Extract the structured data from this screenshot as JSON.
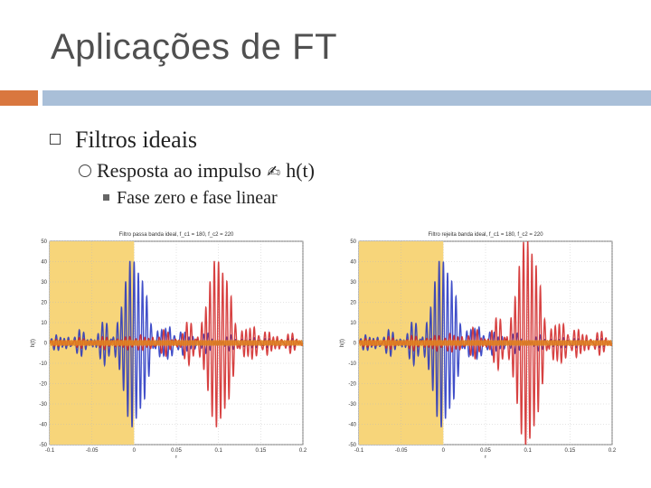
{
  "slide": {
    "title": "Aplicações de FT",
    "bullet_1": "Filtros ideais",
    "bullet_2_prefix": "Resposta ao impulso",
    "bullet_2_arrow": "✍",
    "bullet_2_suffix": "h(t)",
    "bullet_3": "Fase zero e fase linear"
  },
  "chart_data": [
    {
      "type": "line",
      "title": "Filtro passa banda ideal, f_c1 = 180, f_c2 = 220",
      "xlabel": "t",
      "ylabel": "h(t)",
      "xlim": [
        -0.1,
        0.2
      ],
      "ylim": [
        -50,
        50
      ],
      "xticks": [
        "-0.1",
        "-0.05",
        "0",
        "0.05",
        "0.1",
        "0.15",
        "0.2"
      ],
      "yticks": [
        "50",
        "40",
        "30",
        "20",
        "10",
        "0",
        "-10",
        "-20",
        "-30",
        "-40",
        "-50"
      ],
      "shaded_region": [
        -0.1,
        0
      ],
      "series": [
        {
          "color": "#2030c0",
          "center": 0,
          "amplitude": 40
        },
        {
          "color": "#d02020",
          "center": 0.1,
          "amplitude": 40
        },
        {
          "color": "#e08020",
          "center": null,
          "amplitude": 1
        }
      ]
    },
    {
      "type": "line",
      "title": "Filtro rejeita banda ideal, f_c1 = 180, f_c2 = 220",
      "xlabel": "t",
      "ylabel": "h(t)",
      "xlim": [
        -0.1,
        0.2
      ],
      "ylim": [
        -50,
        50
      ],
      "xticks": [
        "-0.1",
        "-0.05",
        "0",
        "0.05",
        "0.1",
        "0.15",
        "0.2"
      ],
      "yticks": [
        "50",
        "40",
        "30",
        "20",
        "10",
        "0",
        "-10",
        "-20",
        "-30",
        "-40",
        "-50"
      ],
      "shaded_region": [
        -0.1,
        0
      ],
      "series": [
        {
          "color": "#2030c0",
          "center": 0,
          "amplitude": 40
        },
        {
          "color": "#d02020",
          "center": 0.1,
          "amplitude": 50
        },
        {
          "color": "#e08020",
          "center": null,
          "amplitude": 1
        }
      ]
    }
  ]
}
